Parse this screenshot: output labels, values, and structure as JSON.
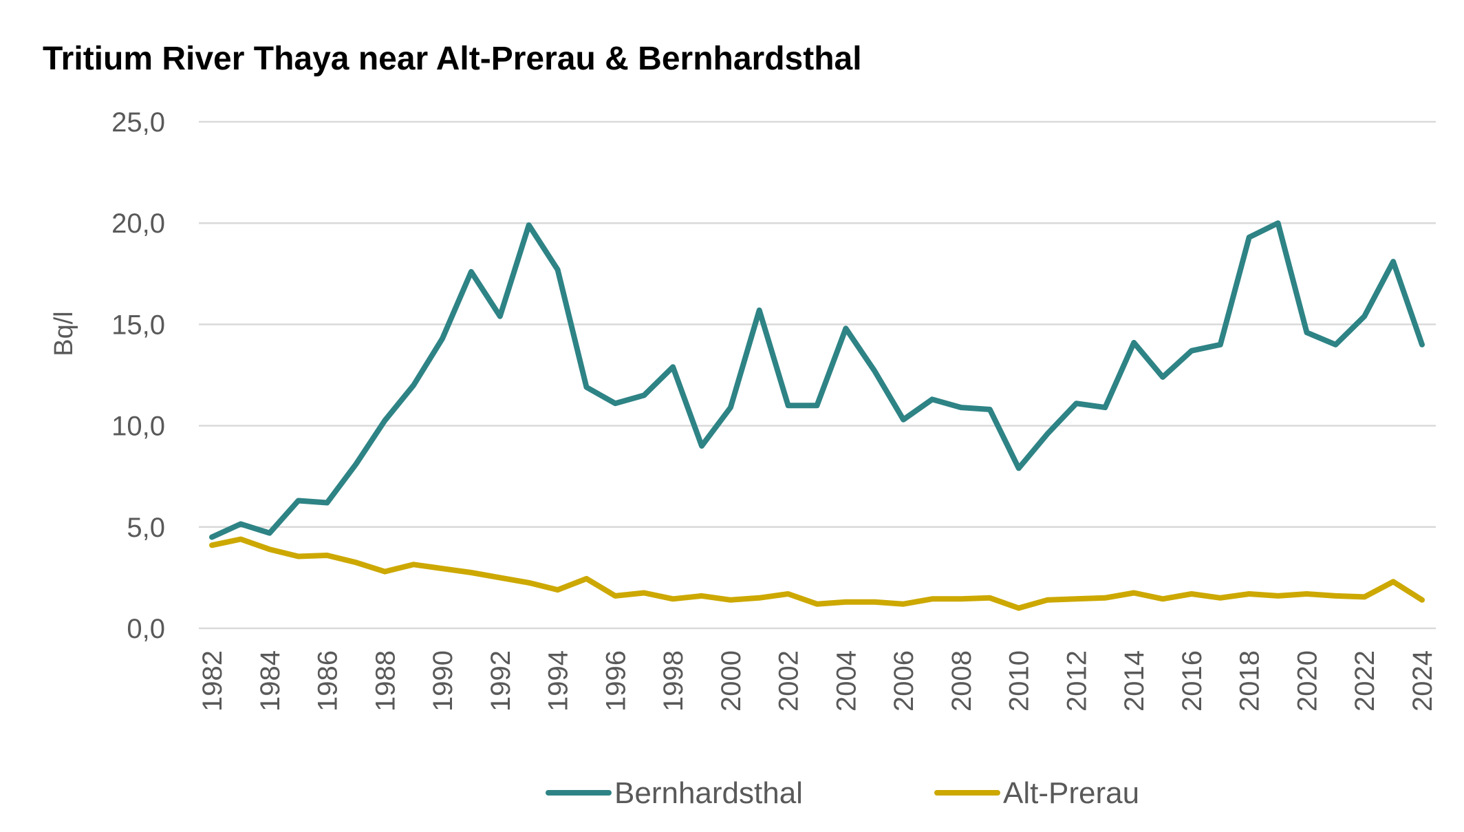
{
  "chart_data": {
    "type": "line",
    "title": "Tritium River Thaya near Alt-Prerau & Bernhardsthal",
    "xlabel": "",
    "ylabel": "Bq/l",
    "ylim": [
      0,
      25
    ],
    "yticks": [
      "0,0",
      "5,0",
      "10,0",
      "15,0",
      "20,0",
      "25,0"
    ],
    "grid": true,
    "legend_position": "bottom",
    "x": [
      1982,
      1983,
      1984,
      1985,
      1986,
      1987,
      1988,
      1989,
      1990,
      1991,
      1992,
      1993,
      1994,
      1995,
      1996,
      1997,
      1998,
      1999,
      2000,
      2001,
      2002,
      2003,
      2004,
      2005,
      2006,
      2007,
      2008,
      2009,
      2010,
      2011,
      2012,
      2013,
      2014,
      2015,
      2016,
      2017,
      2018,
      2019,
      2020,
      2021,
      2022,
      2023,
      2024
    ],
    "xtick_labels": [
      "1982",
      "1984",
      "1986",
      "1988",
      "1990",
      "1992",
      "1994",
      "1996",
      "1998",
      "2000",
      "2002",
      "2004",
      "2006",
      "2008",
      "2010",
      "2012",
      "2014",
      "2016",
      "2018",
      "2020",
      "2022",
      "2024"
    ],
    "series": [
      {
        "name": "Bernhardsthal",
        "color": "#2E8385",
        "values": [
          4.5,
          5.15,
          4.7,
          6.3,
          6.2,
          8.1,
          10.25,
          12.0,
          14.3,
          17.6,
          15.4,
          19.9,
          17.7,
          11.9,
          11.1,
          11.5,
          12.9,
          9.0,
          10.9,
          15.7,
          11.0,
          11.0,
          14.8,
          12.7,
          10.3,
          11.3,
          10.9,
          10.8,
          7.9,
          9.6,
          11.1,
          10.9,
          14.1,
          12.4,
          13.7,
          14.0,
          19.3,
          20.0,
          14.6,
          14.0,
          15.4,
          18.1,
          14.0
        ]
      },
      {
        "name": "Alt-Prerau",
        "color": "#CCA800",
        "values": [
          4.1,
          4.4,
          3.9,
          3.55,
          3.6,
          3.25,
          2.8,
          3.15,
          2.95,
          2.75,
          2.5,
          2.25,
          1.9,
          2.45,
          1.6,
          1.75,
          1.45,
          1.6,
          1.4,
          1.5,
          1.7,
          1.2,
          1.3,
          1.3,
          1.2,
          1.45,
          1.45,
          1.5,
          1.0,
          1.4,
          1.45,
          1.5,
          1.75,
          1.45,
          1.7,
          1.5,
          1.7,
          1.6,
          1.7,
          1.6,
          1.55,
          2.3,
          1.4
        ]
      }
    ]
  }
}
